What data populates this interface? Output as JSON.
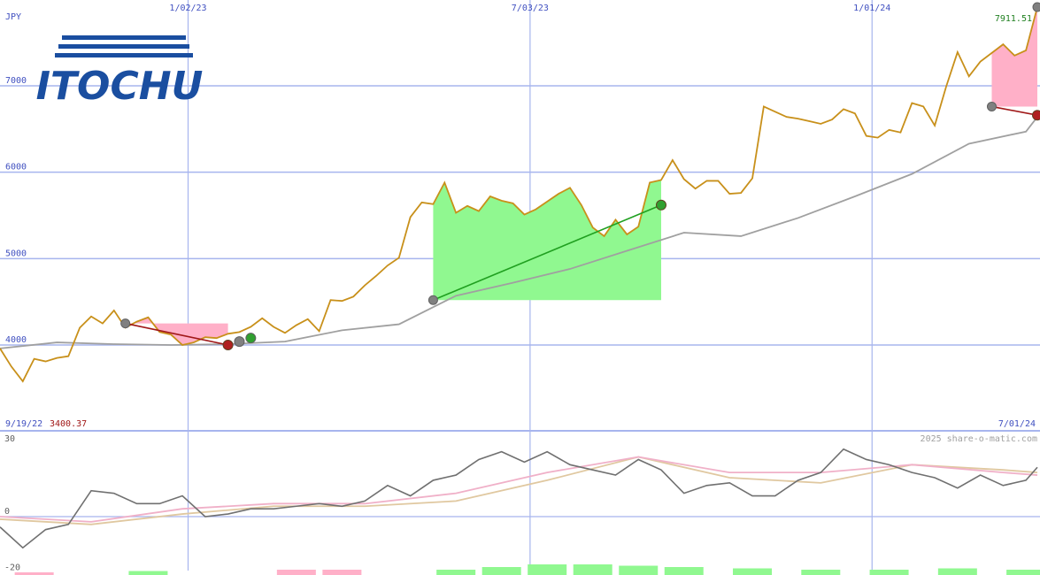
{
  "logo_text": "ITOCHU",
  "watermark": "2025 share-o-matic.com",
  "currency": "JPY",
  "colors": {
    "price": "#c8901a",
    "moving_avg": "#a0a0a0",
    "grid": "#a7b5ee",
    "label": "#4050c0",
    "gain_fill": "#90f890",
    "loss_fill": "#ffb0c8",
    "gain_line": "#20a020",
    "loss_line": "#a01818",
    "osc_main": "#707070",
    "osc_pink": "#f0b0c8",
    "osc_tan": "#e0c8a0",
    "logo": "#1a4ea0"
  },
  "chart_data": [
    {
      "type": "line",
      "panel": "price",
      "x_tick_labels": [
        "1/02/23",
        "7/03/23",
        "1/01/24"
      ],
      "y_ticks": [
        4000,
        5000,
        6000,
        7000
      ],
      "y_tick_labels": [
        "4000",
        "5000",
        "6000",
        "7000"
      ],
      "ylim": [
        3300,
        8000
      ],
      "start_label": "9/19/22",
      "end_label": "7/01/24",
      "min_value": 3400.37,
      "min_label": "3400.37",
      "last_value": 7911.51,
      "last_label": "7911.51",
      "series": [
        {
          "role": "price",
          "x_index": [
            0,
            1,
            2,
            3,
            4,
            5,
            6,
            7,
            8,
            9,
            10,
            11,
            12,
            13,
            14,
            15,
            16,
            17,
            18,
            19,
            20,
            21,
            22,
            23,
            24,
            25,
            26,
            27,
            28,
            29,
            30,
            31,
            32,
            33,
            34,
            35,
            36,
            37,
            38,
            39,
            40,
            41,
            42,
            43,
            44,
            45,
            46,
            47,
            48,
            49,
            50,
            51,
            52,
            53,
            54,
            55,
            56,
            57,
            58,
            59,
            60,
            61,
            62,
            63,
            64,
            65,
            66,
            67,
            68,
            69,
            70,
            71,
            72,
            73,
            74,
            75,
            76,
            77,
            78,
            79,
            80,
            81,
            82,
            83,
            84,
            85,
            86,
            87,
            88,
            89,
            90,
            91
          ],
          "values": [
            3960,
            3750,
            3580,
            3840,
            3810,
            3850,
            3870,
            4200,
            4330,
            4250,
            4400,
            4200,
            4270,
            4320,
            4150,
            4120,
            4000,
            4030,
            4090,
            4080,
            4130,
            4150,
            4210,
            4310,
            4210,
            4140,
            4230,
            4300,
            4160,
            4520,
            4510,
            4560,
            4690,
            4800,
            4920,
            5010,
            5480,
            5650,
            5630,
            5880,
            5530,
            5610,
            5550,
            5720,
            5670,
            5640,
            5510,
            5570,
            5660,
            5750,
            5820,
            5620,
            5360,
            5260,
            5450,
            5280,
            5370,
            5880,
            5910,
            6140,
            5920,
            5810,
            5900,
            5900,
            5750,
            5760,
            5930,
            6760,
            6700,
            6640,
            6620,
            6590,
            6560,
            6610,
            6730,
            6680,
            6420,
            6400,
            6490,
            6460,
            6800,
            6760,
            6540,
            6990,
            7390,
            7110,
            7280,
            7380,
            7480,
            7350,
            7410,
            7911.51
          ]
        },
        {
          "role": "moving-average",
          "x_index": [
            0,
            5,
            10,
            15,
            20,
            25,
            30,
            35,
            40,
            45,
            50,
            55,
            60,
            65,
            70,
            75,
            80,
            85,
            90,
            91
          ],
          "values": [
            3960,
            4030,
            4010,
            4000,
            4010,
            4040,
            4170,
            4240,
            4570,
            4720,
            4880,
            5090,
            5300,
            5260,
            5470,
            5720,
            5980,
            6330,
            6470,
            6640
          ]
        }
      ],
      "trades": [
        {
          "type": "loss",
          "entry_index": 11,
          "entry_value": 4250,
          "exit_index": 20,
          "exit_value": 4000
        },
        {
          "type": "gain",
          "entry_index": 38,
          "entry_value": 4520,
          "exit_index": 58,
          "exit_value": 5620
        },
        {
          "type": "loss",
          "entry_index": 87,
          "entry_value": 6760,
          "exit_index": 96,
          "exit_value": 6660
        }
      ],
      "markers": [
        {
          "kind": "hold",
          "index": 21,
          "value": 4040
        },
        {
          "kind": "buy",
          "index": 22,
          "value": 4080
        }
      ]
    },
    {
      "type": "line",
      "panel": "oscillator",
      "y_ticks": [
        30,
        0,
        -20
      ],
      "y_tick_labels": [
        "30",
        "0",
        "-20"
      ],
      "ylim": [
        -22,
        33
      ],
      "series": [
        {
          "role": "oscillator",
          "x_index": [
            0,
            2,
            4,
            6,
            8,
            10,
            12,
            14,
            16,
            18,
            20,
            22,
            24,
            26,
            28,
            30,
            32,
            34,
            36,
            38,
            40,
            42,
            44,
            46,
            48,
            50,
            52,
            54,
            56,
            58,
            60,
            62,
            64,
            66,
            68,
            70,
            72,
            74,
            76,
            78,
            80,
            82,
            84,
            86,
            88,
            90,
            91
          ],
          "values": [
            -4,
            -12,
            -5,
            -3,
            10,
            9,
            5,
            5,
            8,
            0,
            1,
            3,
            3,
            4,
            5,
            4,
            6,
            12,
            8,
            14,
            16,
            22,
            25,
            21,
            25,
            20,
            18,
            16,
            22,
            18,
            9,
            12,
            13,
            8,
            8,
            14,
            17,
            26,
            22,
            20,
            17,
            15,
            11,
            16,
            12,
            14,
            19
          ]
        },
        {
          "role": "signal-pink",
          "x_index": [
            0,
            8,
            16,
            24,
            32,
            40,
            48,
            56,
            64,
            72,
            80,
            88,
            91
          ],
          "values": [
            0,
            -2,
            3,
            5,
            5,
            9,
            17,
            23,
            17,
            17,
            20,
            17,
            16
          ]
        },
        {
          "role": "signal-tan",
          "x_index": [
            0,
            8,
            16,
            24,
            32,
            40,
            48,
            56,
            64,
            72,
            80,
            88,
            91
          ],
          "values": [
            -1,
            -3,
            1,
            4,
            4,
            6,
            14,
            23,
            15,
            13,
            20,
            18,
            17
          ]
        }
      ],
      "volume_bars": [
        {
          "x_index": 3,
          "value": 1,
          "tone": "loss"
        },
        {
          "x_index": 13,
          "value": 1.5,
          "tone": "gain"
        },
        {
          "x_index": 26,
          "value": 2,
          "tone": "loss"
        },
        {
          "x_index": 30,
          "value": 2,
          "tone": "loss"
        },
        {
          "x_index": 40,
          "value": 2,
          "tone": "gain"
        },
        {
          "x_index": 44,
          "value": 3,
          "tone": "gain"
        },
        {
          "x_index": 48,
          "value": 4,
          "tone": "gain"
        },
        {
          "x_index": 52,
          "value": 4,
          "tone": "gain"
        },
        {
          "x_index": 56,
          "value": 3.5,
          "tone": "gain"
        },
        {
          "x_index": 60,
          "value": 3,
          "tone": "gain"
        },
        {
          "x_index": 66,
          "value": 2.5,
          "tone": "gain"
        },
        {
          "x_index": 72,
          "value": 2,
          "tone": "gain"
        },
        {
          "x_index": 78,
          "value": 2,
          "tone": "gain"
        },
        {
          "x_index": 84,
          "value": 2.5,
          "tone": "gain"
        },
        {
          "x_index": 90,
          "value": 2,
          "tone": "gain"
        }
      ]
    }
  ]
}
